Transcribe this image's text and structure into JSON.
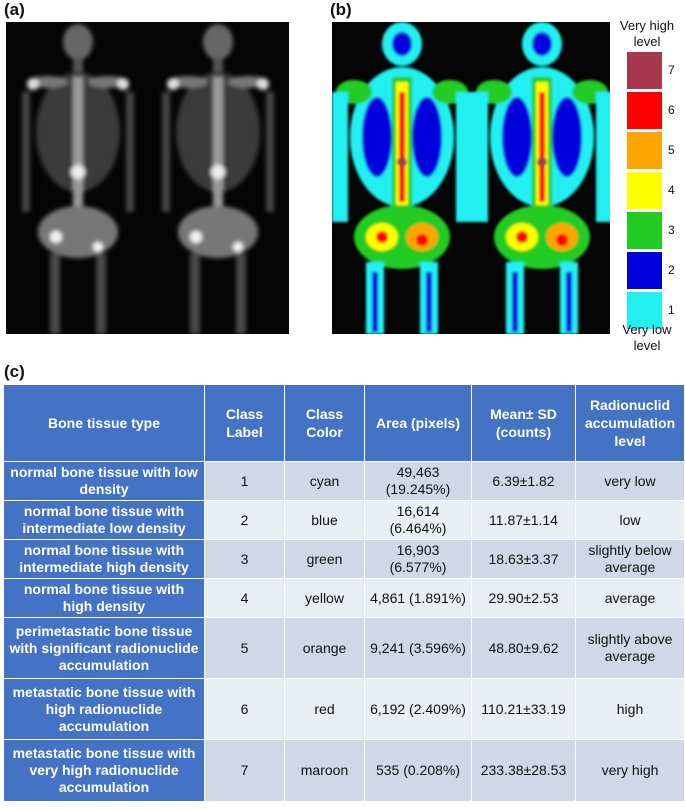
{
  "panels": {
    "a": "(a)",
    "b": "(b)",
    "c": "(c)"
  },
  "legend": {
    "top_caption": "Very high level",
    "bottom_caption": "Very low level",
    "levels": [
      {
        "label": "7",
        "color": "#a8384e"
      },
      {
        "label": "6",
        "color": "#ff0000"
      },
      {
        "label": "5",
        "color": "#ffa500"
      },
      {
        "label": "4",
        "color": "#ffff00"
      },
      {
        "label": "3",
        "color": "#22cc22"
      },
      {
        "label": "2",
        "color": "#0000dd"
      },
      {
        "label": "1",
        "color": "#22f0f0"
      }
    ]
  },
  "table": {
    "headers": [
      "Bone tissue type",
      "Class Label",
      "Class Color",
      "Area (pixels)",
      "Mean± SD (counts)",
      "Radionuclid accumulation level"
    ],
    "rows": [
      {
        "type": "normal bone tissue with low density",
        "label": "1",
        "color": "cyan",
        "area": "49,463 (19.245%)",
        "mean": "6.39±1.82",
        "level": "very low"
      },
      {
        "type": "normal bone tissue with intermediate low density",
        "label": "2",
        "color": "blue",
        "area": "16,614 (6.464%)",
        "mean": "11.87±1.14",
        "level": "low"
      },
      {
        "type": "normal bone tissue with intermediate high density",
        "label": "3",
        "color": "green",
        "area": "16,903 (6.577%)",
        "mean": "18.63±3.37",
        "level": "slightly below average"
      },
      {
        "type": "normal bone tissue with high density",
        "label": "4",
        "color": "yellow",
        "area": "4,861 (1.891%)",
        "mean": "29.90±2.53",
        "level": "average"
      },
      {
        "type": "perimetastatic bone tissue with significant radionuclide accumulation",
        "label": "5",
        "color": "orange",
        "area": "9,241 (3.596%)",
        "mean": "48.80±9.62",
        "level": "slightly above average"
      },
      {
        "type": "metastatic bone tissue with high radionuclide accumulation",
        "label": "6",
        "color": "red",
        "area": "6,192 (2.409%)",
        "mean": "110.21±33.19",
        "level": "high"
      },
      {
        "type": "metastatic bone tissue with very high radionuclide accumulation",
        "label": "7",
        "color": "maroon",
        "area": "535 (0.208%)",
        "mean": "233.38±28.53",
        "level": "very high"
      }
    ]
  }
}
